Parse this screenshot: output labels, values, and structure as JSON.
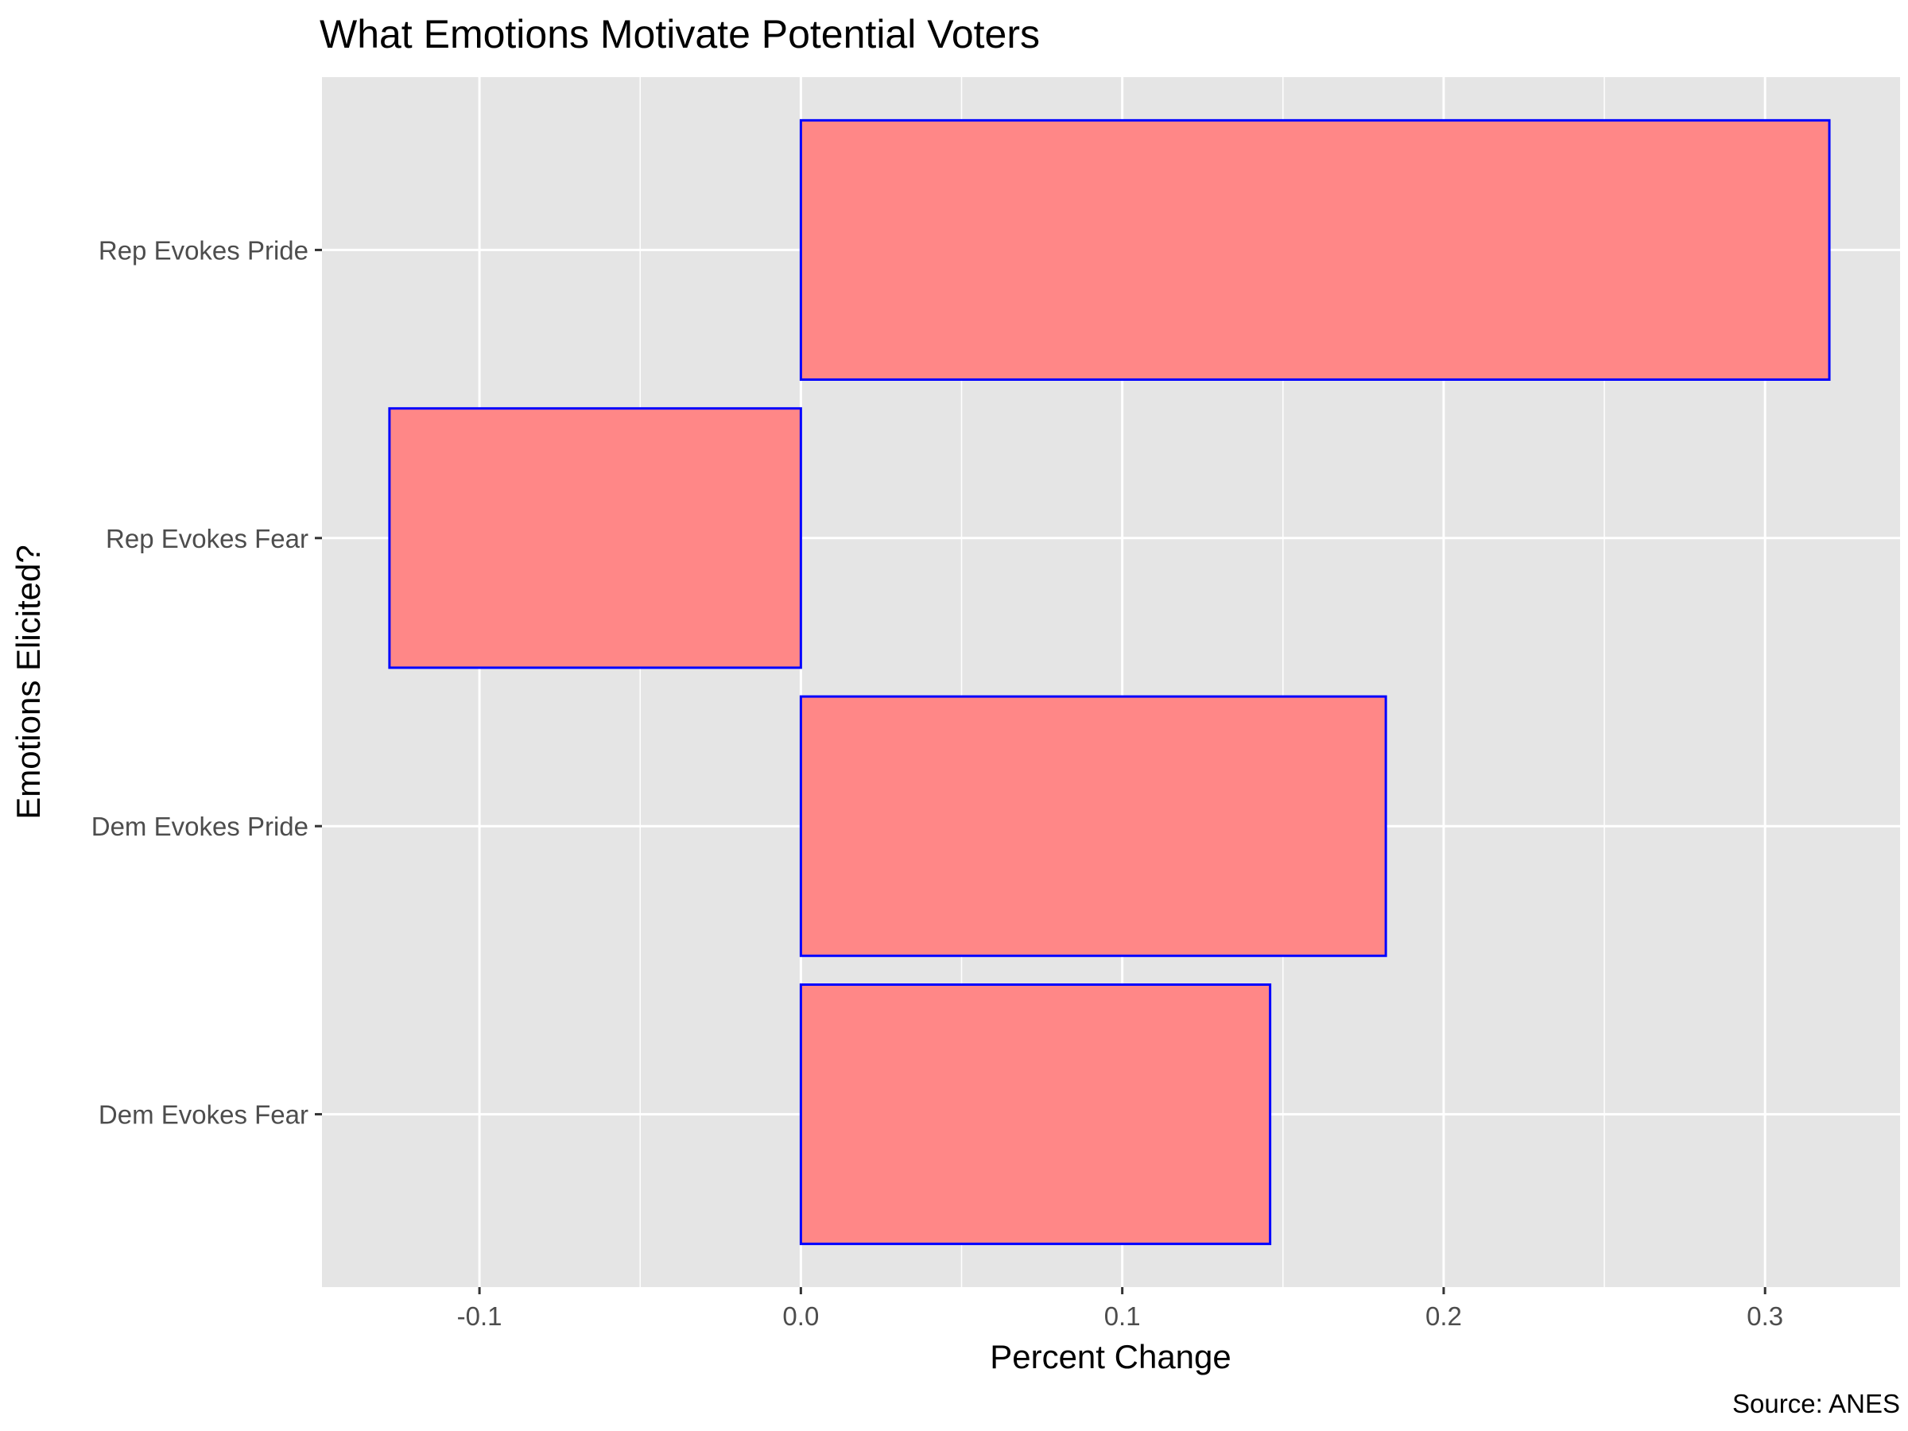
{
  "chart_data": {
    "type": "bar",
    "orientation": "horizontal",
    "title": "What Emotions Motivate Potential Voters",
    "xlabel": "Percent Change",
    "ylabel": "Emotions Elicited?",
    "caption": "Source: ANES",
    "categories": [
      "Dem Evokes Fear",
      "Dem Evokes Pride",
      "Rep Evokes Fear",
      "Rep Evokes Pride"
    ],
    "values": [
      0.146,
      0.182,
      -0.128,
      0.32
    ],
    "xlim": [
      -0.149,
      0.342
    ],
    "xticks": [
      -0.1,
      0.0,
      0.1,
      0.2,
      0.3
    ],
    "xtick_labels": [
      "-0.1",
      "0.0",
      "0.1",
      "0.2",
      "0.3"
    ],
    "grid": true,
    "colors": {
      "bar_fill": "#ff8787",
      "bar_stroke": "#0000ff",
      "panel_bg": "#e5e5e5",
      "grid": "#ffffff"
    }
  }
}
